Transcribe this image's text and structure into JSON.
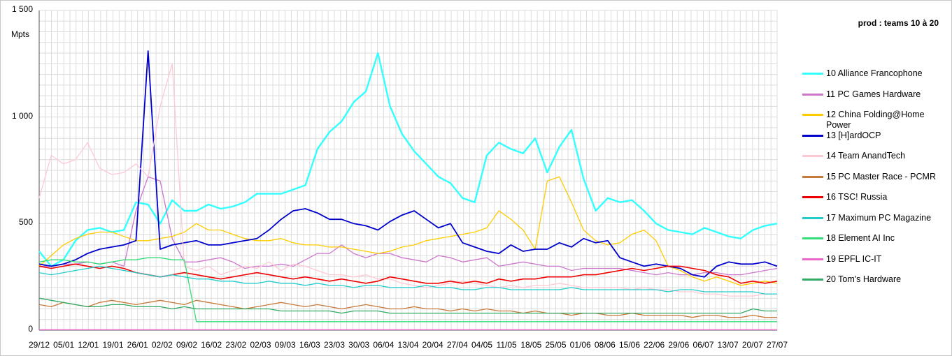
{
  "chart_data": {
    "type": "line",
    "title": "prod : teams 10 à 20",
    "ylabel": "Mpts",
    "ylim": [
      0,
      1500
    ],
    "yticks": [
      0,
      500,
      1000,
      1500
    ],
    "ytick_labels": [
      "0",
      "500",
      "1 000",
      "1 500"
    ],
    "xlabels": [
      "29/12",
      "05/01",
      "12/01",
      "19/01",
      "26/01",
      "02/02",
      "09/02",
      "16/02",
      "23/02",
      "02/03",
      "09/03",
      "16/03",
      "23/03",
      "30/03",
      "06/04",
      "13/04",
      "20/04",
      "27/04",
      "04/05",
      "11/05",
      "18/05",
      "25/05",
      "01/06",
      "08/06",
      "15/06",
      "22/06",
      "29/06",
      "06/07",
      "13/07",
      "20/07",
      "27/07"
    ],
    "grid": true,
    "legend_position": "right",
    "series": [
      {
        "name": "10 Alliance Francophone",
        "color": "#33ffff",
        "width": 2.4,
        "values": [
          370,
          300,
          330,
          420,
          470,
          480,
          460,
          470,
          600,
          590,
          500,
          610,
          560,
          560,
          590,
          570,
          580,
          600,
          640,
          640,
          640,
          660,
          680,
          850,
          930,
          980,
          1070,
          1120,
          1300,
          1050,
          920,
          840,
          780,
          720,
          690,
          620,
          600,
          820,
          880,
          850,
          830,
          900,
          740,
          860,
          940,
          710,
          560,
          620,
          600,
          610,
          560,
          500,
          470,
          460,
          450,
          480,
          460,
          440,
          430,
          470,
          490,
          500
        ]
      },
      {
        "name": "11 PC Games Hardware",
        "color": "#cc77cc",
        "width": 1.3,
        "values": [
          300,
          300,
          310,
          310,
          320,
          310,
          320,
          300,
          560,
          720,
          700,
          430,
          320,
          320,
          330,
          340,
          320,
          290,
          300,
          300,
          310,
          300,
          330,
          360,
          360,
          400,
          360,
          340,
          360,
          360,
          340,
          330,
          320,
          350,
          340,
          320,
          330,
          340,
          300,
          310,
          320,
          310,
          300,
          300,
          280,
          290,
          290,
          290,
          290,
          280,
          270,
          260,
          270,
          260,
          260,
          270,
          270,
          260,
          260,
          270,
          280,
          290
        ]
      },
      {
        "name": "12 China Folding@Home Power",
        "color": "#ffcc00",
        "width": 1.3,
        "values": [
          300,
          350,
          400,
          430,
          450,
          460,
          460,
          440,
          420,
          420,
          430,
          440,
          460,
          500,
          470,
          470,
          450,
          430,
          420,
          420,
          430,
          410,
          400,
          400,
          390,
          390,
          380,
          370,
          360,
          370,
          390,
          400,
          420,
          430,
          440,
          450,
          460,
          480,
          560,
          520,
          470,
          380,
          700,
          720,
          600,
          470,
          420,
          400,
          410,
          450,
          470,
          420,
          300,
          280,
          250,
          230,
          250,
          230,
          210,
          220,
          230,
          220
        ]
      },
      {
        "name": "13 [H]ardOCP",
        "color": "#0000cc",
        "width": 1.8,
        "values": [
          310,
          300,
          310,
          330,
          360,
          380,
          390,
          400,
          420,
          1310,
          380,
          400,
          410,
          420,
          400,
          400,
          410,
          420,
          430,
          470,
          520,
          560,
          570,
          550,
          520,
          520,
          500,
          490,
          470,
          510,
          540,
          560,
          520,
          480,
          500,
          410,
          390,
          370,
          360,
          400,
          370,
          380,
          380,
          410,
          390,
          430,
          410,
          420,
          340,
          320,
          300,
          310,
          300,
          290,
          260,
          250,
          300,
          320,
          310,
          310,
          320,
          300
        ]
      },
      {
        "name": "14 Team AnandTech",
        "color": "#ffc9d4",
        "width": 1.3,
        "values": [
          620,
          820,
          780,
          800,
          880,
          760,
          730,
          740,
          780,
          720,
          1050,
          1250,
          300,
          280,
          300,
          260,
          280,
          300,
          290,
          320,
          280,
          310,
          300,
          280,
          260,
          260,
          250,
          260,
          240,
          240,
          220,
          210,
          200,
          210,
          220,
          230,
          220,
          210,
          200,
          210,
          200,
          210,
          210,
          220,
          210,
          200,
          200,
          200,
          200,
          190,
          200,
          190,
          190,
          180,
          180,
          170,
          170,
          160,
          160,
          160,
          170,
          170
        ]
      },
      {
        "name": "15 PC Master Race - PCMR",
        "color": "#c87a3a",
        "width": 1.3,
        "values": [
          120,
          110,
          130,
          120,
          110,
          130,
          140,
          130,
          120,
          130,
          140,
          130,
          120,
          140,
          130,
          120,
          110,
          100,
          110,
          120,
          130,
          120,
          110,
          120,
          110,
          100,
          110,
          120,
          110,
          100,
          100,
          110,
          100,
          100,
          90,
          100,
          90,
          100,
          90,
          90,
          80,
          90,
          80,
          80,
          70,
          80,
          80,
          70,
          70,
          80,
          70,
          70,
          70,
          70,
          60,
          70,
          70,
          60,
          60,
          70,
          60,
          60
        ]
      },
      {
        "name": "16 TSC! Russia",
        "color": "#ee0000",
        "width": 1.6,
        "values": [
          300,
          290,
          300,
          310,
          300,
          290,
          300,
          290,
          270,
          260,
          250,
          260,
          270,
          260,
          250,
          240,
          250,
          260,
          270,
          260,
          250,
          240,
          250,
          240,
          230,
          240,
          230,
          220,
          230,
          250,
          240,
          230,
          220,
          220,
          230,
          220,
          230,
          220,
          240,
          230,
          240,
          240,
          250,
          250,
          250,
          260,
          260,
          270,
          280,
          290,
          280,
          290,
          300,
          300,
          290,
          280,
          260,
          250,
          220,
          230,
          220,
          230
        ]
      },
      {
        "name": "17 Maximum PC Magazine",
        "color": "#22cccc",
        "width": 1.3,
        "values": [
          270,
          260,
          270,
          280,
          290,
          300,
          290,
          280,
          270,
          260,
          250,
          260,
          250,
          240,
          240,
          230,
          230,
          220,
          220,
          230,
          220,
          220,
          210,
          220,
          210,
          210,
          200,
          210,
          210,
          200,
          200,
          200,
          210,
          200,
          200,
          190,
          190,
          200,
          200,
          190,
          190,
          190,
          190,
          190,
          200,
          190,
          190,
          190,
          190,
          190,
          190,
          190,
          180,
          190,
          190,
          180,
          180,
          180,
          180,
          180,
          170,
          170
        ]
      },
      {
        "name": "18 Element AI Inc",
        "color": "#33dd77",
        "width": 1.3,
        "values": [
          320,
          330,
          330,
          320,
          320,
          310,
          320,
          330,
          330,
          340,
          340,
          330,
          330,
          40,
          40,
          40,
          40,
          40,
          40,
          40,
          40,
          40,
          40,
          40,
          40,
          40,
          40,
          40,
          40,
          40,
          40,
          40,
          40,
          40,
          40,
          40,
          40,
          40,
          40,
          40,
          40,
          40,
          40,
          40,
          40,
          40,
          40,
          40,
          40,
          40,
          40,
          40,
          40,
          40,
          40,
          40,
          40,
          40,
          40,
          40,
          40,
          40
        ]
      },
      {
        "name": "19 EPFL IC-IT",
        "color": "#ee66cc",
        "width": 1.3,
        "values": [
          2,
          2,
          2,
          2,
          2,
          2,
          2,
          2,
          2,
          2,
          2,
          2,
          2,
          2,
          2,
          2,
          2,
          2,
          2,
          2,
          2,
          2,
          2,
          2,
          2,
          2,
          2,
          2,
          2,
          2,
          2,
          2,
          2,
          2,
          2,
          2,
          2,
          2,
          2,
          2,
          2,
          2,
          2,
          2,
          2,
          2,
          2,
          2,
          2,
          2,
          2,
          2,
          2,
          2,
          2,
          2,
          2,
          2,
          2,
          2,
          2,
          2
        ]
      },
      {
        "name": "20 Tom's Hardware",
        "color": "#33aa66",
        "width": 1.3,
        "values": [
          150,
          140,
          130,
          120,
          110,
          110,
          120,
          120,
          110,
          110,
          110,
          100,
          110,
          100,
          100,
          100,
          100,
          100,
          100,
          100,
          90,
          90,
          90,
          90,
          90,
          80,
          90,
          90,
          90,
          80,
          80,
          80,
          80,
          80,
          80,
          80,
          80,
          80,
          80,
          80,
          80,
          80,
          80,
          80,
          80,
          80,
          80,
          80,
          80,
          80,
          80,
          80,
          80,
          80,
          80,
          80,
          80,
          80,
          80,
          100,
          90,
          90
        ]
      }
    ]
  }
}
